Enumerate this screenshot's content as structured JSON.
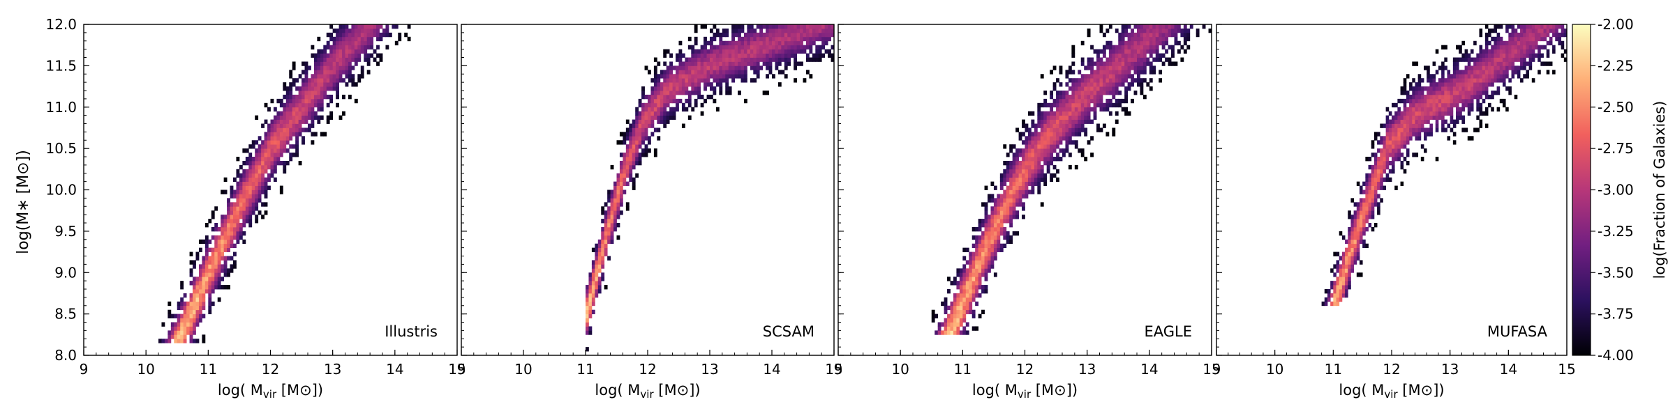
{
  "figure": {
    "ylabel": "log(M∗ [M⊙])",
    "colorbar": {
      "label": "log(Fraction of Galaxies)",
      "range": [
        -4.0,
        -2.0
      ],
      "ticks": [
        "-2.00",
        "-2.25",
        "-2.50",
        "-2.75",
        "-3.00",
        "-3.25",
        "-3.50",
        "-3.75",
        "-4.00"
      ],
      "colormap": "magma",
      "stops": [
        "#000004",
        "#2c115f",
        "#721f81",
        "#b73779",
        "#f1605d",
        "#feb078",
        "#fcfdbf"
      ]
    }
  },
  "chart_data": [
    {
      "type": "heatmap",
      "label": "Illustris",
      "xlabel_pre": "log( M",
      "xlabel_sub": "vir",
      "xlabel_post": " [M⊙])",
      "xlim": [
        9,
        15
      ],
      "ylim": [
        8.0,
        12.0
      ],
      "xticks": [
        "9",
        "10",
        "11",
        "12",
        "13",
        "14",
        "15"
      ],
      "yticks": [
        "8.0",
        "8.5",
        "9.0",
        "9.5",
        "10.0",
        "10.5",
        "11.0",
        "11.5",
        "12.0"
      ],
      "ridge": [
        [
          10.5,
          8.15
        ],
        [
          11.0,
          9.0
        ],
        [
          11.5,
          9.8
        ],
        [
          12.0,
          10.5
        ],
        [
          12.5,
          11.0
        ],
        [
          13.0,
          11.5
        ],
        [
          13.6,
          12.0
        ]
      ],
      "scatter": 0.6,
      "xmin_cut": 9.2,
      "ymin_cut": 8.15
    },
    {
      "type": "heatmap",
      "label": "SCSAM",
      "xlabel_pre": "log( M",
      "xlabel_sub": "vir",
      "xlabel_post": " [M⊙])",
      "xlim": [
        9,
        15
      ],
      "ylim": [
        8.0,
        12.0
      ],
      "xticks": [
        "9",
        "10",
        "11",
        "12",
        "13",
        "14",
        "15"
      ],
      "yticks": [
        "8.0",
        "8.5",
        "9.0",
        "9.5",
        "10.0",
        "10.5",
        "11.0",
        "11.5",
        "12.0"
      ],
      "ridge": [
        [
          11.0,
          8.5
        ],
        [
          11.3,
          9.4
        ],
        [
          11.6,
          10.2
        ],
        [
          11.9,
          10.8
        ],
        [
          12.3,
          11.2
        ],
        [
          13.0,
          11.5
        ],
        [
          14.5,
          11.9
        ]
      ],
      "scatter": 0.5,
      "xmin_cut": 11.0,
      "ymin_cut": 8.0
    },
    {
      "type": "heatmap",
      "label": "EAGLE",
      "xlabel_pre": "log( M",
      "xlabel_sub": "vir",
      "xlabel_post": " [M⊙])",
      "xlim": [
        9,
        15
      ],
      "ylim": [
        8.0,
        12.0
      ],
      "xticks": [
        "9",
        "10",
        "11",
        "12",
        "13",
        "14",
        "15"
      ],
      "yticks": [
        "8.0",
        "8.5",
        "9.0",
        "9.5",
        "10.0",
        "10.5",
        "11.0",
        "11.5",
        "12.0"
      ],
      "ridge": [
        [
          10.8,
          8.3
        ],
        [
          11.3,
          9.2
        ],
        [
          11.8,
          10.0
        ],
        [
          12.3,
          10.6
        ],
        [
          12.9,
          11.1
        ],
        [
          13.5,
          11.5
        ],
        [
          14.2,
          12.0
        ]
      ],
      "scatter": 0.65,
      "xmin_cut": 9.4,
      "ymin_cut": 8.25
    },
    {
      "type": "heatmap",
      "label": "MUFASA",
      "xlabel_pre": "log( M",
      "xlabel_sub": "vir",
      "xlabel_post": " [M⊙])",
      "xlim": [
        9,
        15
      ],
      "ylim": [
        8.0,
        12.0
      ],
      "xticks": [
        "9",
        "10",
        "11",
        "12",
        "13",
        "14",
        "15"
      ],
      "yticks": [
        "8.0",
        "8.5",
        "9.0",
        "9.5",
        "10.0",
        "10.5",
        "11.0",
        "11.5",
        "12.0"
      ],
      "ridge": [
        [
          11.0,
          8.6
        ],
        [
          11.3,
          9.3
        ],
        [
          11.6,
          9.9
        ],
        [
          11.9,
          10.5
        ],
        [
          12.4,
          10.9
        ],
        [
          13.2,
          11.2
        ],
        [
          14.3,
          11.8
        ]
      ],
      "scatter": 0.55,
      "xmin_cut": 10.6,
      "ymin_cut": 8.6
    }
  ]
}
